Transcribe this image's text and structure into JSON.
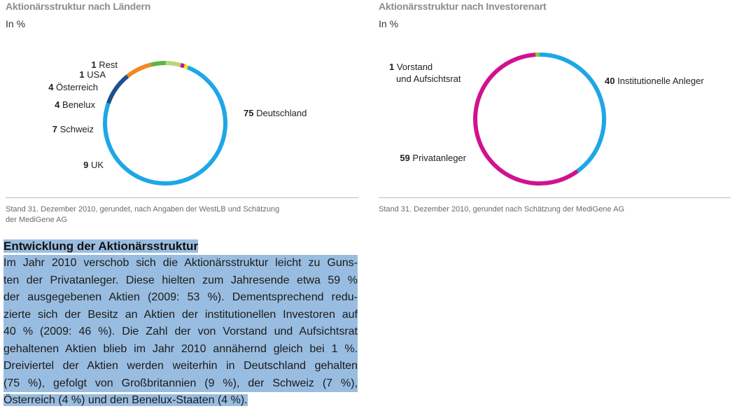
{
  "charts": [
    {
      "title": "Aktionärsstruktur nach Ländern",
      "unit": "In %",
      "footnote_lines": [
        "Stand 31. Dezember 2010, gerundet, nach Angaben der WestLB und Schätzung",
        "der MediGene AG"
      ]
    },
    {
      "title": "Aktionärsstruktur nach Investorenart",
      "unit": "In %",
      "footnote_lines": [
        "Stand 31. Dezember 2010, gerundet nach Schätzung der MediGene AG"
      ]
    }
  ],
  "chart_data": [
    {
      "type": "pie",
      "variant": "donut",
      "title": "Aktionärsstruktur nach Ländern",
      "unit": "In %",
      "slices": [
        {
          "label": "Deutschland",
          "value": 75,
          "color": "#1ea7e6"
        },
        {
          "label": "UK",
          "value": 9,
          "color": "#1f4f8c"
        },
        {
          "label": "Schweiz",
          "value": 7,
          "color": "#f08a24"
        },
        {
          "label": "Benelux",
          "value": 4,
          "color": "#5db544"
        },
        {
          "label": "Österreich",
          "value": 4,
          "color": "#b9d77a"
        },
        {
          "label": "USA",
          "value": 1,
          "color": "#d0128f"
        },
        {
          "label": "Rest",
          "value": 1,
          "color": "#f1e419"
        }
      ]
    },
    {
      "type": "pie",
      "variant": "donut",
      "title": "Aktionärsstruktur nach Investorenart",
      "unit": "In %",
      "slices": [
        {
          "label": "Institutionelle Anleger",
          "value": 40,
          "color": "#1ea7e6"
        },
        {
          "label": "Privatanleger",
          "value": 59,
          "color": "#d0128f"
        },
        {
          "label": "Vorstand und Aufsichtsrat",
          "value": 1,
          "color": "#8cc63f"
        }
      ]
    }
  ],
  "section": {
    "heading": "Entwicklung der Aktionärsstruktur",
    "lines": [
      "Im Jahr 2010 verschob sich die Aktionärsstruktur leicht zu Guns-",
      "ten der Privatanleger. Diese hielten zum Jahresende etwa 59 %",
      "der ausgegebenen Aktien (2009: 53 %). Dementsprechend redu-",
      "zierte sich der Besitz an Aktien der institutionellen Investoren auf",
      "40 % (2009: 46 %). Die Zahl der von Vorstand und Aufsichtsrat",
      "gehaltenen Aktien blieb im Jahr 2010 annähernd gleich bei 1 %.",
      "Dreiviertel der Aktien werden weiterhin in Deutschland gehalten",
      "(75 %), gefolgt von Großbritannien (9 %), der Schweiz (7 %),",
      "Österreich (4 %) und den Benelux-Staaten (4 %)."
    ]
  }
}
